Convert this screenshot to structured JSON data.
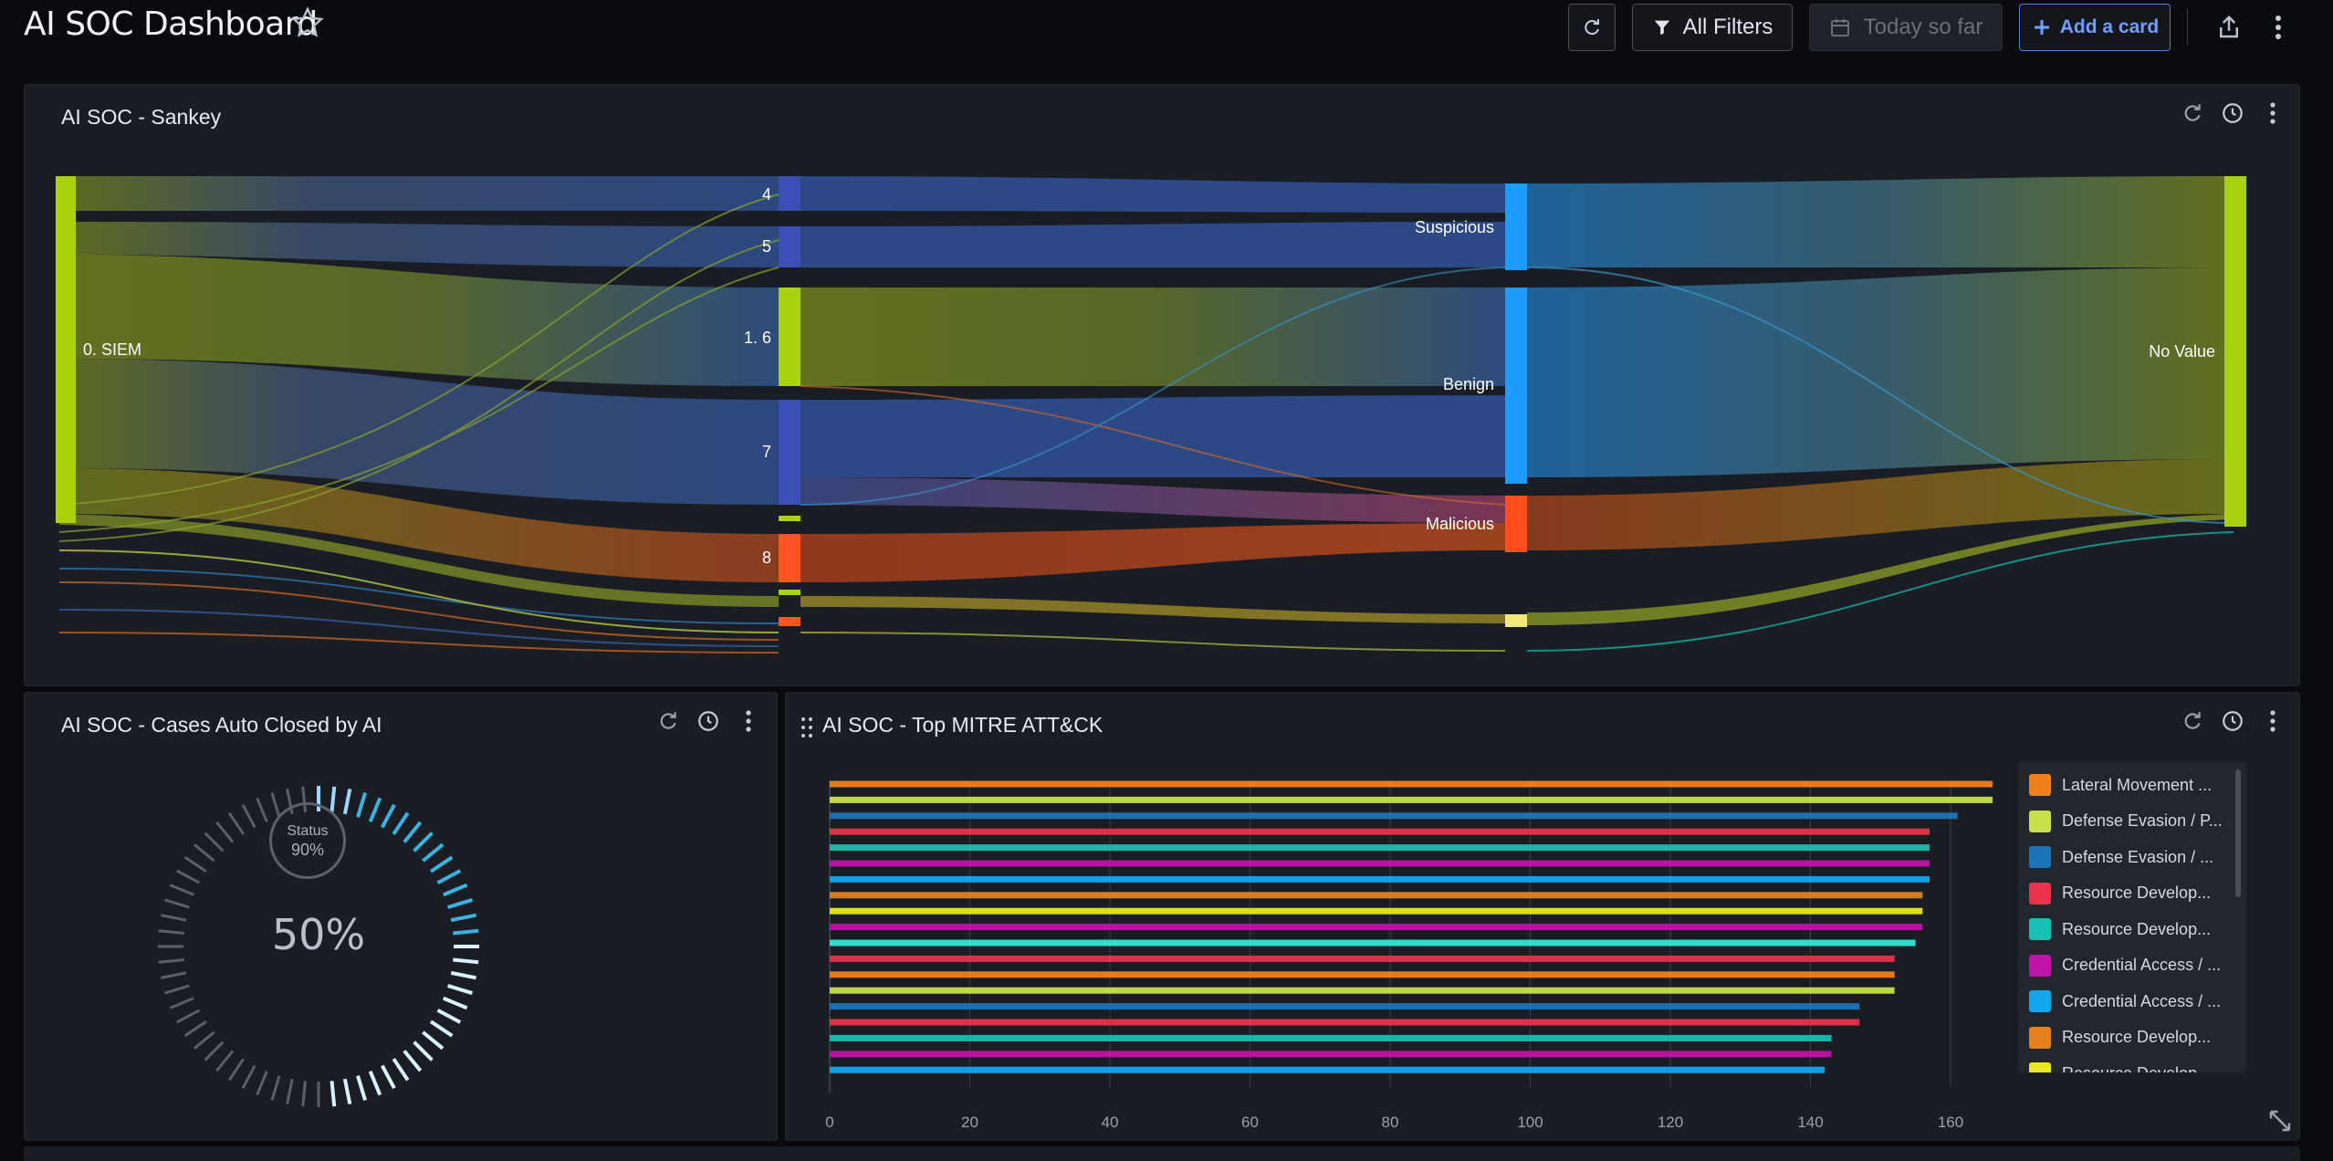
{
  "header": {
    "title": "AI SOC Dashboard",
    "all_filters_label": "All Filters",
    "date_placeholder": "Today so far",
    "add_card_label": "Add a card"
  },
  "sankey_card": {
    "title": "AI SOC - Sankey",
    "nodes": {
      "source": "0. SIEM",
      "n4": "4",
      "n5": "5",
      "n16": "1. 6",
      "n7": "7",
      "n8": "8",
      "suspicious": "Suspicious",
      "benign": "Benign",
      "malicious": "Malicious",
      "no_value": "No Value"
    }
  },
  "gauge_card": {
    "title": "AI SOC - Cases Auto Closed by AI",
    "value_label": "50%",
    "value": 0.5,
    "status_label": "Status",
    "status_value": "90%"
  },
  "mitre_card": {
    "title": "AI SOC - Top MITRE ATT&CK",
    "x_ticks": [
      "0",
      "20",
      "40",
      "60",
      "80",
      "100",
      "120",
      "140",
      "160"
    ],
    "legend": [
      {
        "label": "Lateral Movement ...",
        "color": "#f07f1c"
      },
      {
        "label": "Defense Evasion / P...",
        "color": "#c9e04a"
      },
      {
        "label": "Defense Evasion / ...",
        "color": "#1b74b8"
      },
      {
        "label": "Resource Develop...",
        "color": "#e8334a"
      },
      {
        "label": "Resource Develop...",
        "color": "#17c0b2"
      },
      {
        "label": "Credential Access / ...",
        "color": "#c013a8"
      },
      {
        "label": "Credential Access / ...",
        "color": "#14a7f0"
      },
      {
        "label": "Resource Develop...",
        "color": "#e6801e"
      },
      {
        "label": "Resource Develop...",
        "color": "#e8e81c"
      }
    ]
  },
  "chart_data": [
    {
      "type": "bar",
      "orientation": "horizontal",
      "title": "AI SOC - Top MITRE ATT&CK",
      "xlim": [
        0,
        160
      ],
      "x_ticks": [
        0,
        20,
        40,
        60,
        80,
        100,
        120,
        140,
        160
      ],
      "grid": true,
      "legend_position": "right",
      "values": [
        166,
        166,
        161,
        157,
        157,
        157,
        157,
        156,
        156,
        156,
        155,
        152,
        152,
        152,
        147,
        147,
        143,
        143,
        142
      ],
      "colors": [
        "#f07f1c",
        "#c9e04a",
        "#1b74b8",
        "#e8334a",
        "#17c0b2",
        "#c013a8",
        "#14a7f0",
        "#e6801e",
        "#e8e81c",
        "#c013a8",
        "#2ee8d8",
        "#e8334a",
        "#f07f1c",
        "#c9e04a",
        "#1b74b8",
        "#e8334a",
        "#17c0b2",
        "#c013a8",
        "#14a7f0"
      ]
    }
  ]
}
